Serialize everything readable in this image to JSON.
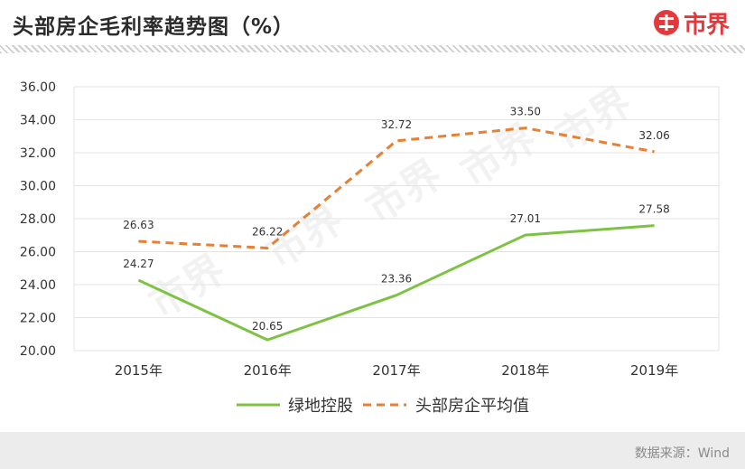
{
  "header": {
    "title": "头部房企毛利率趋势图（%）",
    "logo_text": "市界"
  },
  "watermark": "市界",
  "footer": {
    "source": "数据来源：Wind"
  },
  "colors": {
    "series1": "#7dc242",
    "series2": "#e87f32",
    "grid": "#e3e3e3",
    "brand": "#e4393c"
  },
  "chart_data": {
    "type": "line",
    "categories": [
      "2015年",
      "2016年",
      "2017年",
      "2018年",
      "2019年"
    ],
    "series": [
      {
        "name": "绿地控股",
        "values": [
          24.27,
          20.65,
          23.36,
          27.01,
          27.58
        ],
        "style": "solid",
        "color": "#7dc242"
      },
      {
        "name": "头部房企平均值",
        "values": [
          26.63,
          26.22,
          32.72,
          33.5,
          32.06
        ],
        "style": "dashed",
        "color": "#e87f32"
      }
    ],
    "value_labels": {
      "s0": [
        "24.27",
        "20.65",
        "23.36",
        "27.01",
        "27.58"
      ],
      "s1": [
        "26.63",
        "26.22",
        "32.72",
        "33.50",
        "32.06"
      ]
    },
    "yticks": [
      "36.00",
      "34.00",
      "32.00",
      "30.00",
      "28.00",
      "26.00",
      "24.00",
      "22.00",
      "20.00"
    ],
    "ylim": [
      20,
      36
    ],
    "grid": true,
    "legend_position": "bottom"
  }
}
